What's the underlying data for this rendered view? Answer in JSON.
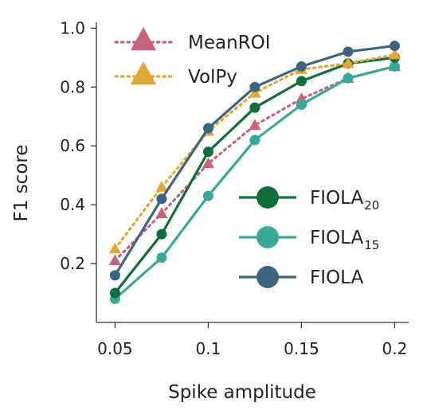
{
  "chart_data": {
    "type": "line",
    "title": "",
    "xlabel": "Spike amplitude",
    "ylabel": "F1 score",
    "x": [
      0.05,
      0.075,
      0.1,
      0.125,
      0.15,
      0.175,
      0.2
    ],
    "xlim": [
      0.04,
      0.2075
    ],
    "ylim": [
      0.0,
      1.02
    ],
    "xticks": [
      0.05,
      0.1,
      0.15,
      0.2
    ],
    "xtick_labels": [
      "0.05",
      "0.1",
      "0.15",
      "0.2"
    ],
    "yticks": [
      0.2,
      0.4,
      0.6,
      0.8,
      1.0
    ],
    "ytick_labels": [
      "0.2",
      "0.4",
      "0.6",
      "0.8",
      "1.0"
    ],
    "grid": false,
    "series": [
      {
        "name": "MeanROI",
        "legend_main": "MeanROI",
        "legend_sub": "",
        "color": "#c8647a",
        "marker": "triangle",
        "dash": "dotted",
        "values": [
          0.21,
          0.37,
          0.54,
          0.67,
          0.76,
          0.83,
          0.87
        ]
      },
      {
        "name": "VolPy",
        "legend_main": "VolPy",
        "legend_sub": "",
        "color": "#e4a734",
        "marker": "triangle",
        "dash": "dotted",
        "values": [
          0.25,
          0.46,
          0.65,
          0.78,
          0.86,
          0.88,
          0.91
        ]
      },
      {
        "name": "FIOLA20",
        "legend_main": "FIOLA",
        "legend_sub": "20",
        "color": "#106e3c",
        "marker": "circle",
        "dash": "solid",
        "values": [
          0.1,
          0.3,
          0.58,
          0.73,
          0.82,
          0.88,
          0.9
        ]
      },
      {
        "name": "FIOLA15",
        "legend_main": "FIOLA",
        "legend_sub": "15",
        "color": "#3aa896",
        "marker": "circle",
        "dash": "solid",
        "values": [
          0.08,
          0.22,
          0.43,
          0.62,
          0.74,
          0.83,
          0.87
        ]
      },
      {
        "name": "FIOLA",
        "legend_main": "FIOLA",
        "legend_sub": "",
        "color": "#3d6580",
        "marker": "circle",
        "dash": "solid",
        "values": [
          0.16,
          0.42,
          0.66,
          0.8,
          0.87,
          0.92,
          0.94
        ]
      }
    ],
    "draw_order": [
      "MeanROI",
      "FIOLA15",
      "FIOLA20",
      "VolPy",
      "FIOLA"
    ],
    "legend": [
      {
        "group": "top-left",
        "entries": [
          "MeanROI",
          "VolPy"
        ]
      },
      {
        "group": "bottom-right",
        "entries": [
          "FIOLA20",
          "FIOLA15",
          "FIOLA"
        ]
      }
    ]
  }
}
